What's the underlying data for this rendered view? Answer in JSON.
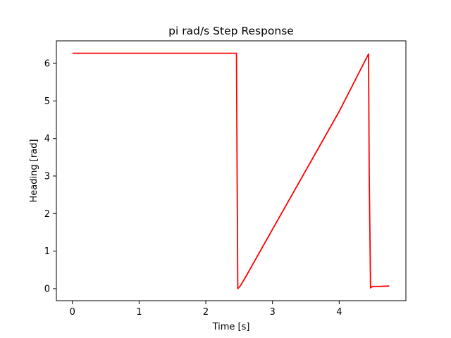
{
  "chart_data": {
    "type": "line",
    "title": "pi rad/s Step Response",
    "xlabel": "Time [s]",
    "ylabel": "Heading [rad]",
    "xlim": [
      -0.24,
      5.0
    ],
    "ylim": [
      -0.32,
      6.6
    ],
    "x_ticks": [
      0,
      1,
      2,
      3,
      4
    ],
    "x_tick_labels": [
      "0",
      "1",
      "2",
      "3",
      "4"
    ],
    "y_ticks": [
      0,
      1,
      2,
      3,
      4,
      5,
      6
    ],
    "y_tick_labels": [
      "0",
      "1",
      "2",
      "3",
      "4",
      "5",
      "6"
    ],
    "grid": false,
    "legend": "none",
    "series": [
      {
        "color": "#ff0000",
        "x": [
          0.0,
          2.46,
          2.47,
          2.48,
          2.52,
          2.6,
          3.0,
          3.5,
          4.0,
          4.44,
          4.45,
          4.47,
          4.5,
          4.6,
          4.75
        ],
        "y": [
          6.27,
          6.27,
          2.9,
          0.0,
          0.08,
          0.32,
          1.58,
          3.15,
          4.72,
          6.25,
          3.1,
          0.02,
          0.06,
          0.06,
          0.07
        ]
      }
    ]
  }
}
